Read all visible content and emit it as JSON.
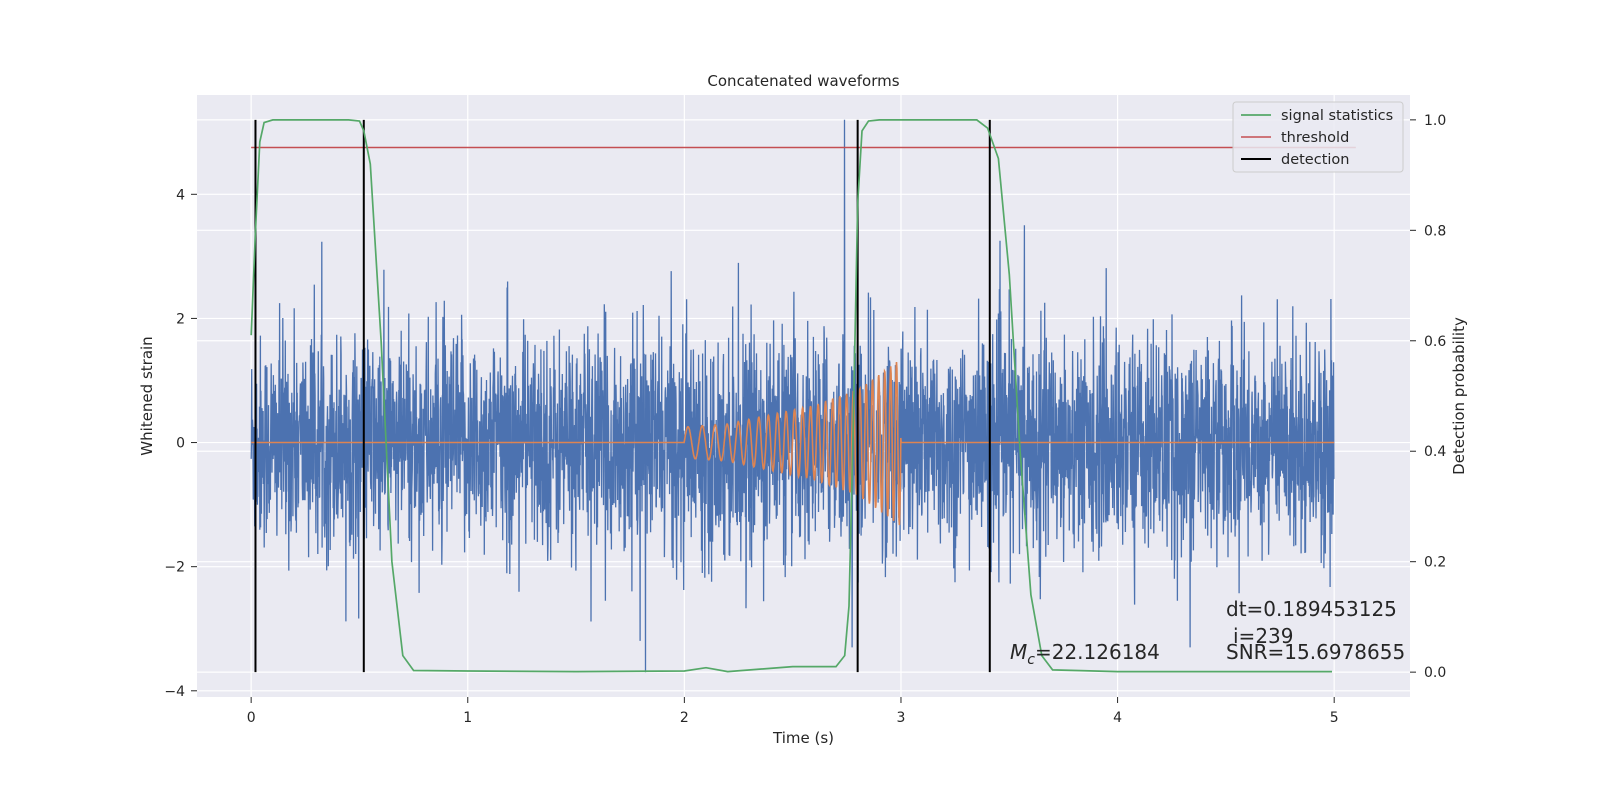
{
  "chart_data": {
    "type": "line",
    "title": "Concatenated waveforms",
    "xlabel": "Time (s)",
    "ylabel": "Whitened strain",
    "ylabel_right": "Detection probability",
    "xlim": [
      -0.25,
      5.35
    ],
    "ylim": [
      -4.1,
      5.6
    ],
    "ylim_right": [
      -0.045,
      1.045
    ],
    "x_ticks": [
      0,
      1,
      2,
      3,
      4,
      5
    ],
    "y_ticks": [
      -4,
      -2,
      0,
      2,
      4
    ],
    "y_ticks_right": [
      0.0,
      0.2,
      0.4,
      0.6,
      0.8,
      1.0
    ],
    "x_tick_labels": [
      "0",
      "1",
      "2",
      "3",
      "4",
      "5"
    ],
    "y_tick_labels": [
      "−4",
      "−2",
      "0",
      "2",
      "4"
    ],
    "y_right_tick_labels": [
      "0.0",
      "0.2",
      "0.4",
      "0.6",
      "0.8",
      "1.0"
    ],
    "grid": true,
    "legend_position": "top-right",
    "legend": [
      "signal statistics",
      "threshold",
      "detection"
    ],
    "colors": {
      "noise": "#4c72b0",
      "signal": "#dd8452",
      "statistics": "#55a868",
      "threshold": "#c44e52",
      "detection": "#000000",
      "axes_bg": "#eaeaf2",
      "grid": "#ffffff"
    },
    "series": [
      {
        "description_key": "noise",
        "axis": "left",
        "x_range": [
          0,
          5
        ],
        "amplitude_range": [
          -3.7,
          5.2
        ],
        "peaks": [
          {
            "x": 2.74,
            "y": 5.2
          },
          {
            "x": 3.57,
            "y": 3.5
          },
          {
            "x": 1.82,
            "y": -3.7
          }
        ]
      },
      {
        "description_key": "signal",
        "axis": "left",
        "x": [
          0,
          2.0,
          2.2,
          2.4,
          2.6,
          2.8,
          2.9,
          3.0,
          3.001,
          5.0
        ],
        "envelope": [
          0,
          0.25,
          0.3,
          0.45,
          0.6,
          0.85,
          1.1,
          1.35,
          0,
          0
        ]
      },
      {
        "name": "signal statistics",
        "axis": "right",
        "x": [
          0.0,
          0.02,
          0.04,
          0.06,
          0.1,
          0.2,
          0.45,
          0.5,
          0.52,
          0.55,
          0.6,
          0.65,
          0.7,
          0.75,
          1.0,
          1.5,
          2.0,
          2.1,
          2.2,
          2.5,
          2.7,
          2.74,
          2.76,
          2.78,
          2.8,
          2.82,
          2.85,
          2.9,
          3.0,
          3.35,
          3.4,
          3.45,
          3.5,
          3.55,
          3.6,
          3.65,
          3.7,
          4.0,
          4.5,
          4.99
        ],
        "y": [
          0.61,
          0.8,
          0.96,
          0.995,
          1.0,
          1.0,
          1.0,
          0.998,
          0.98,
          0.92,
          0.6,
          0.2,
          0.03,
          0.003,
          0.002,
          0.001,
          0.002,
          0.008,
          0.001,
          0.01,
          0.01,
          0.03,
          0.12,
          0.45,
          0.85,
          0.98,
          0.998,
          1.0,
          1.0,
          1.0,
          0.985,
          0.93,
          0.72,
          0.4,
          0.14,
          0.03,
          0.004,
          0.001,
          0.001,
          0.001
        ]
      },
      {
        "name": "threshold",
        "axis": "right",
        "x": [
          0,
          5.1
        ],
        "y": [
          0.95,
          0.95
        ]
      }
    ],
    "detections": [
      0.02,
      0.52,
      2.8,
      3.41
    ],
    "annotations": {
      "mc_symbol": "M",
      "mc_subscript": "c",
      "mc_value": "=22.126184",
      "dt": "dt=0.189453125",
      "i": "i=239",
      "snr": "SNR=15.6978655"
    }
  }
}
